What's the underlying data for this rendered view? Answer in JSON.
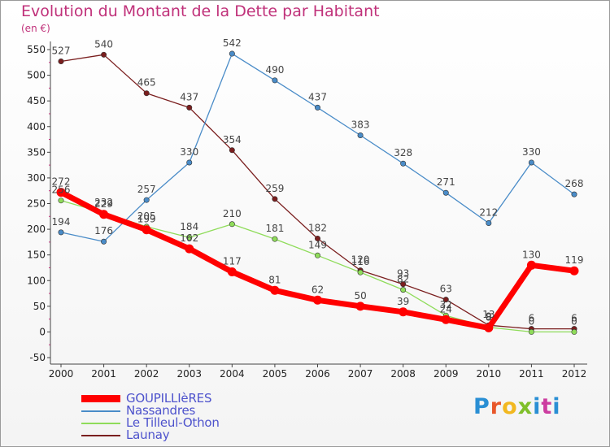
{
  "title": "Evolution du Montant de la Dette par Habitant",
  "unit_label": "(en €)",
  "brand": {
    "text": "Proxiti",
    "letter_colors": [
      "#2a8fd4",
      "#e8572a",
      "#f2b820",
      "#7fbf2a",
      "#2a8fd4",
      "#cc3da0"
    ]
  },
  "chart_data": {
    "type": "line",
    "x": [
      "2000",
      "2001",
      "2002",
      "2003",
      "2004",
      "2005",
      "2006",
      "2007",
      "2008",
      "2009",
      "2010",
      "2011",
      "2012"
    ],
    "yticks": [
      "550",
      "500",
      "450",
      "400",
      "350",
      "300",
      "250",
      "200",
      "150",
      "100",
      "50",
      "0",
      "-50"
    ],
    "ylim": [
      -50,
      550
    ],
    "grid": false,
    "legend_position": "bottom-left",
    "series": [
      {
        "name": "GOUPILLIèRES",
        "color": "#ff0000",
        "values": [
          272,
          229,
          199,
          162,
          117,
          81,
          62,
          50,
          39,
          24,
          8,
          130,
          119
        ]
      },
      {
        "name": "Nassandres",
        "color": "#4a8cc8",
        "values": [
          194,
          176,
          257,
          330,
          542,
          490,
          437,
          383,
          328,
          271,
          212,
          330,
          268
        ]
      },
      {
        "name": "Le Tilleul-Othon",
        "color": "#8fdc5a",
        "values": [
          256,
          232,
          205,
          184,
          210,
          181,
          149,
          116,
          82,
          32,
          9,
          0,
          0
        ]
      },
      {
        "name": "Launay",
        "color": "#7a1e1e",
        "values": [
          527,
          540,
          465,
          437,
          354,
          259,
          182,
          120,
          93,
          63,
          13,
          6,
          6
        ]
      }
    ]
  }
}
